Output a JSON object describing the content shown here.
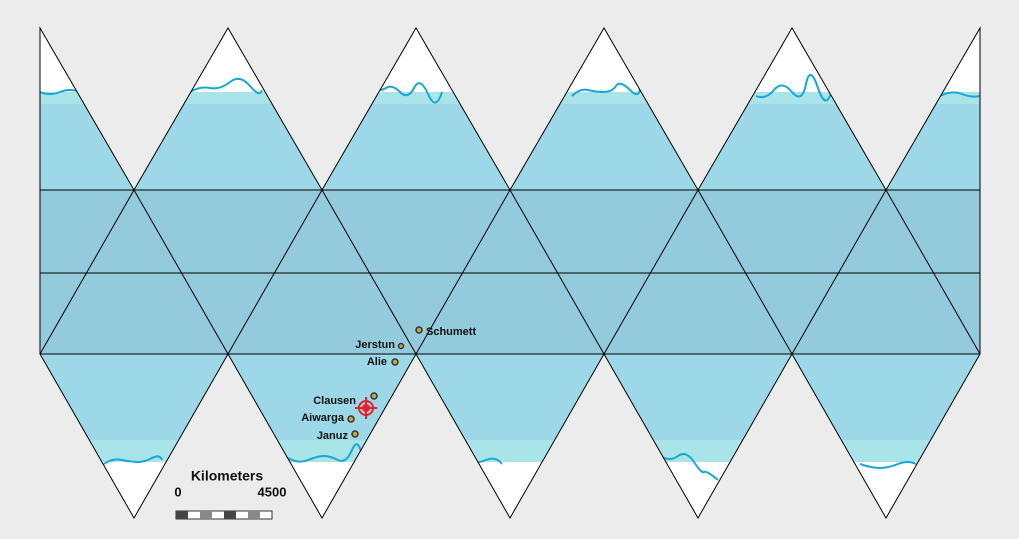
{
  "places": [
    {
      "label": "Schumett"
    },
    {
      "label": "Jerstun"
    },
    {
      "label": "Alie"
    },
    {
      "label": "Clausen"
    },
    {
      "label": "Aiwarga"
    },
    {
      "label": "Januz"
    }
  ],
  "scale": {
    "title": "Kilometers",
    "min_label": "0",
    "max_label": "4500"
  }
}
